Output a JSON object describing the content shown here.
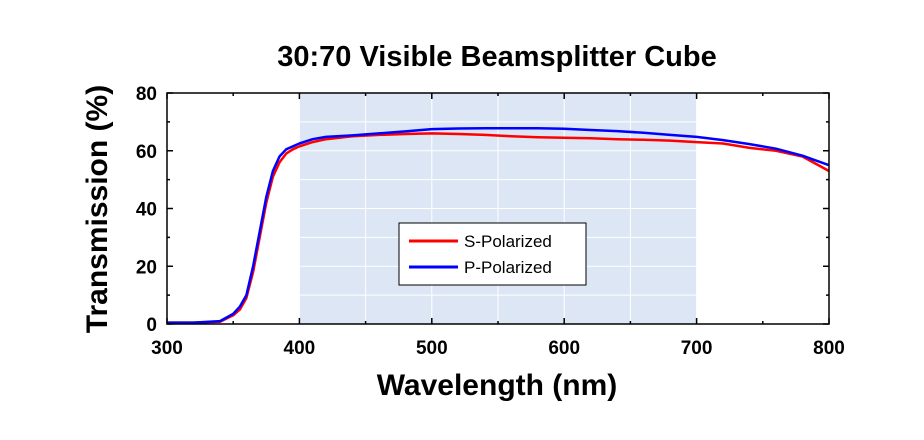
{
  "chart_data": {
    "type": "line",
    "title": "30:70 Visible Beamsplitter Cube",
    "xlabel": "Wavelength (nm)",
    "ylabel": "Transmission (%)",
    "xlim": [
      300,
      800
    ],
    "ylim": [
      0,
      80
    ],
    "xticks": [
      300,
      400,
      500,
      600,
      700,
      800
    ],
    "yticks": [
      0,
      20,
      40,
      60,
      80
    ],
    "grid": true,
    "legend_position": "center",
    "highlight_band": {
      "from": 400,
      "to": 700,
      "color": "#dce6f4"
    },
    "series": [
      {
        "name": "S-Polarized",
        "color": "#ff0000",
        "x": [
          300,
          320,
          340,
          350,
          355,
          360,
          365,
          370,
          375,
          380,
          385,
          390,
          395,
          400,
          410,
          420,
          440,
          460,
          480,
          500,
          520,
          540,
          560,
          580,
          600,
          620,
          640,
          660,
          680,
          700,
          720,
          740,
          760,
          780,
          800
        ],
        "y": [
          0.5,
          0.5,
          0.8,
          3,
          5,
          9,
          18,
          30,
          42,
          51,
          56,
          59,
          60.5,
          61.5,
          63,
          64,
          65,
          65.5,
          65.8,
          66,
          65.8,
          65.5,
          65,
          64.7,
          64.5,
          64.3,
          64,
          63.8,
          63.5,
          63,
          62.5,
          61,
          60,
          58,
          53
        ]
      },
      {
        "name": "P-Polarized",
        "color": "#0000ff",
        "x": [
          300,
          320,
          340,
          350,
          355,
          360,
          365,
          370,
          375,
          380,
          385,
          390,
          395,
          400,
          410,
          420,
          440,
          460,
          480,
          500,
          520,
          540,
          560,
          580,
          600,
          620,
          640,
          660,
          680,
          700,
          720,
          740,
          760,
          780,
          800
        ],
        "y": [
          0.5,
          0.5,
          1,
          3.5,
          6,
          10,
          20,
          32,
          44,
          53,
          58,
          60.5,
          61.5,
          62.5,
          64,
          64.8,
          65.3,
          66,
          66.7,
          67.5,
          67.7,
          67.8,
          67.8,
          67.8,
          67.6,
          67.2,
          66.8,
          66.2,
          65.5,
          64.8,
          63.7,
          62.3,
          60.7,
          58.3,
          55
        ]
      }
    ]
  }
}
